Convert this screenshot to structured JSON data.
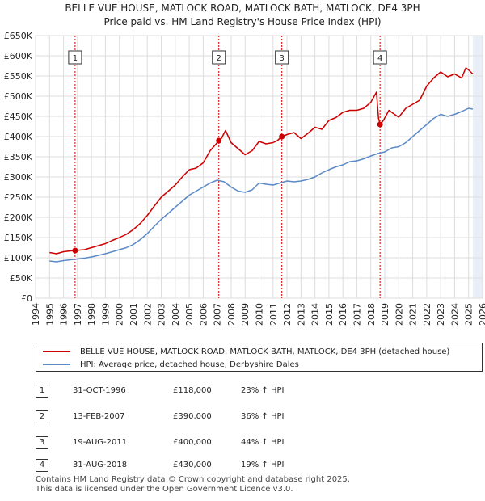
{
  "colors": {
    "property": "#cc0000",
    "hpi": "#5b8ac6",
    "grid": "#dddddd",
    "shade": "#e9eef7",
    "marker_line": "#cc0000"
  },
  "chart_data": {
    "type": "line",
    "title": "BELLE VUE HOUSE, MATLOCK ROAD, MATLOCK BATH, MATLOCK, DE4 3PH",
    "subtitle": "Price paid vs. HM Land Registry's House Price Index (HPI)",
    "xlabel": "",
    "ylabel": "",
    "xlim": [
      1994,
      2026
    ],
    "ylim": [
      0,
      650000
    ],
    "x_ticks": [
      "1994",
      "1995",
      "1996",
      "1997",
      "1998",
      "1999",
      "2000",
      "2001",
      "2002",
      "2003",
      "2004",
      "2005",
      "2006",
      "2007",
      "2008",
      "2009",
      "2010",
      "2011",
      "2012",
      "2013",
      "2014",
      "2015",
      "2016",
      "2017",
      "2018",
      "2019",
      "2020",
      "2021",
      "2022",
      "2023",
      "2024",
      "2025",
      "2026"
    ],
    "y_ticks": [
      "£0",
      "£50K",
      "£100K",
      "£150K",
      "£200K",
      "£250K",
      "£300K",
      "£350K",
      "£400K",
      "£450K",
      "£500K",
      "£550K",
      "£600K",
      "£650K"
    ],
    "grid": true,
    "series": [
      {
        "name": "BELLE VUE HOUSE, MATLOCK ROAD, MATLOCK BATH, MATLOCK, DE4 3PH (detached house)",
        "x": [
          1995.0,
          1995.5,
          1996.0,
          1996.5,
          1996.83,
          1997.5,
          1998.0,
          1998.5,
          1999.0,
          1999.5,
          2000.0,
          2000.5,
          2001.0,
          2001.5,
          2002.0,
          2002.5,
          2003.0,
          2003.5,
          2004.0,
          2004.5,
          2005.0,
          2005.5,
          2006.0,
          2006.5,
          2007.0,
          2007.12,
          2007.3,
          2007.6,
          2008.0,
          2008.5,
          2009.0,
          2009.5,
          2010.0,
          2010.5,
          2011.0,
          2011.3,
          2011.63,
          2012.0,
          2012.5,
          2013.0,
          2013.5,
          2014.0,
          2014.5,
          2015.0,
          2015.5,
          2016.0,
          2016.5,
          2017.0,
          2017.5,
          2018.0,
          2018.4,
          2018.55,
          2018.66,
          2018.9,
          2019.3,
          2019.7,
          2020.0,
          2020.5,
          2021.0,
          2021.5,
          2022.0,
          2022.5,
          2023.0,
          2023.5,
          2024.0,
          2024.5,
          2024.8,
          2025.0,
          2025.3
        ],
        "values": [
          113000,
          110000,
          115000,
          117000,
          118000,
          120000,
          125000,
          130000,
          135000,
          143000,
          150000,
          158000,
          170000,
          185000,
          205000,
          228000,
          250000,
          265000,
          280000,
          300000,
          318000,
          322000,
          335000,
          365000,
          385000,
          390000,
          395000,
          415000,
          385000,
          370000,
          355000,
          365000,
          388000,
          382000,
          385000,
          390000,
          400000,
          405000,
          410000,
          395000,
          408000,
          423000,
          418000,
          440000,
          447000,
          460000,
          465000,
          465000,
          470000,
          485000,
          510000,
          445000,
          430000,
          440000,
          465000,
          455000,
          448000,
          470000,
          480000,
          490000,
          525000,
          545000,
          560000,
          548000,
          555000,
          545000,
          570000,
          565000,
          555000
        ]
      },
      {
        "name": "HPI: Average price, detached house, Derbyshire Dales",
        "x": [
          1995.0,
          1995.5,
          1996.0,
          1996.5,
          1997.0,
          1997.5,
          1998.0,
          1998.5,
          1999.0,
          1999.5,
          2000.0,
          2000.5,
          2001.0,
          2001.5,
          2002.0,
          2002.5,
          2003.0,
          2003.5,
          2004.0,
          2004.5,
          2005.0,
          2005.5,
          2006.0,
          2006.5,
          2007.0,
          2007.5,
          2008.0,
          2008.5,
          2009.0,
          2009.5,
          2010.0,
          2010.5,
          2011.0,
          2011.5,
          2012.0,
          2012.5,
          2013.0,
          2013.5,
          2014.0,
          2014.5,
          2015.0,
          2015.5,
          2016.0,
          2016.5,
          2017.0,
          2017.5,
          2018.0,
          2018.5,
          2019.0,
          2019.5,
          2020.0,
          2020.5,
          2021.0,
          2021.5,
          2022.0,
          2022.5,
          2023.0,
          2023.5,
          2024.0,
          2024.5,
          2025.0,
          2025.3
        ],
        "values": [
          92000,
          90000,
          93000,
          95000,
          97000,
          99000,
          102000,
          106000,
          110000,
          115000,
          120000,
          125000,
          133000,
          145000,
          160000,
          178000,
          195000,
          210000,
          225000,
          240000,
          255000,
          265000,
          275000,
          285000,
          292000,
          288000,
          275000,
          265000,
          262000,
          268000,
          285000,
          282000,
          280000,
          285000,
          290000,
          288000,
          290000,
          294000,
          300000,
          310000,
          318000,
          325000,
          330000,
          338000,
          340000,
          345000,
          352000,
          358000,
          362000,
          372000,
          375000,
          385000,
          400000,
          415000,
          430000,
          445000,
          455000,
          450000,
          455000,
          462000,
          470000,
          468000
        ]
      }
    ],
    "markers": [
      {
        "label": "1",
        "x": 1996.83,
        "value": 118000
      },
      {
        "label": "2",
        "x": 2007.12,
        "value": 390000
      },
      {
        "label": "3",
        "x": 2011.63,
        "value": 400000
      },
      {
        "label": "4",
        "x": 2018.66,
        "value": 430000
      }
    ]
  },
  "legend": {
    "property_label": "BELLE VUE HOUSE, MATLOCK ROAD, MATLOCK BATH, MATLOCK, DE4 3PH (detached house)",
    "hpi_label": "HPI: Average price, detached house, Derbyshire Dales"
  },
  "sales": [
    {
      "num": "1",
      "date": "31-OCT-1996",
      "price": "£118,000",
      "hpi": "23% ↑ HPI"
    },
    {
      "num": "2",
      "date": "13-FEB-2007",
      "price": "£390,000",
      "hpi": "36% ↑ HPI"
    },
    {
      "num": "3",
      "date": "19-AUG-2011",
      "price": "£400,000",
      "hpi": "44% ↑ HPI"
    },
    {
      "num": "4",
      "date": "31-AUG-2018",
      "price": "£430,000",
      "hpi": "19% ↑ HPI"
    }
  ],
  "footer": {
    "line1": "Contains HM Land Registry data © Crown copyright and database right 2025.",
    "line2": "This data is licensed under the Open Government Licence v3.0."
  }
}
